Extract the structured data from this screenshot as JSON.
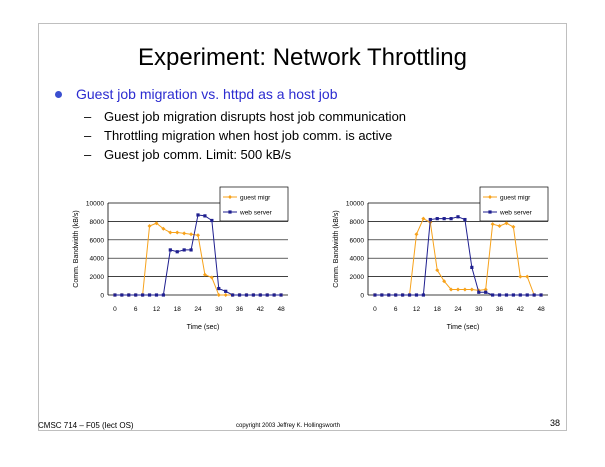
{
  "slide": {
    "title": "Experiment: Network Throttling",
    "main_bullet": "Guest job migration vs. httpd as a host job",
    "sub_bullets": [
      "Guest job migration disrupts host job communication",
      "Throttling migration when host job comm. is active",
      "Guest job comm. Limit: 500 kB/s"
    ],
    "footer_left": "CMSC 714 – F05 (lect OS)",
    "footer_center": "copyright 2003 Jeffrey K. Hollingsworth",
    "page_number": "38"
  },
  "colors": {
    "guest": "#f7a21b",
    "web": "#1f1f8f",
    "bullet": "#2b2bd0"
  },
  "chart_data": [
    {
      "type": "line",
      "xlabel": "Time (sec)",
      "ylabel": "Comm. Bandwidth (kB/s)",
      "ylim": [
        0,
        10000
      ],
      "xlim": [
        -2,
        50
      ],
      "yticks": [
        0,
        2000,
        4000,
        6000,
        8000,
        10000
      ],
      "xticks": [
        0,
        6,
        12,
        18,
        24,
        30,
        36,
        42,
        48
      ],
      "grid": "horizontal",
      "legend": "top-right",
      "series": [
        {
          "name": "guest migr",
          "color": "#f7a21b",
          "marker": "diamond",
          "x": [
            0,
            2,
            4,
            6,
            8,
            10,
            12,
            14,
            16,
            18,
            20,
            22,
            24,
            26,
            28,
            30,
            32,
            34,
            36,
            38,
            40,
            42,
            44,
            46,
            48
          ],
          "y": [
            0,
            0,
            0,
            0,
            0,
            7500,
            7800,
            7200,
            6800,
            6800,
            6700,
            6600,
            6500,
            2200,
            1900,
            0,
            0,
            0,
            0,
            0,
            0,
            0,
            0,
            0,
            0
          ]
        },
        {
          "name": "web server",
          "color": "#1f1f8f",
          "marker": "square",
          "x": [
            0,
            2,
            4,
            6,
            8,
            10,
            12,
            14,
            16,
            18,
            20,
            22,
            24,
            26,
            28,
            30,
            32,
            34,
            36,
            38,
            40,
            42,
            44,
            46,
            48
          ],
          "y": [
            0,
            0,
            0,
            0,
            0,
            0,
            0,
            0,
            4900,
            4700,
            4900,
            4900,
            8700,
            8600,
            8100,
            700,
            400,
            0,
            0,
            0,
            0,
            0,
            0,
            0,
            0
          ]
        }
      ]
    },
    {
      "type": "line",
      "xlabel": "Time (sec)",
      "ylabel": "Comm. Bandwidth (kB/s)",
      "ylim": [
        0,
        10000
      ],
      "xlim": [
        -2,
        50
      ],
      "yticks": [
        0,
        2000,
        4000,
        6000,
        8000,
        10000
      ],
      "xticks": [
        0,
        6,
        12,
        18,
        24,
        30,
        36,
        42,
        48
      ],
      "grid": "horizontal",
      "legend": "top-right",
      "series": [
        {
          "name": "guest migr",
          "color": "#f7a21b",
          "marker": "diamond",
          "x": [
            0,
            2,
            4,
            6,
            8,
            10,
            12,
            14,
            16,
            18,
            20,
            22,
            24,
            26,
            28,
            30,
            32,
            34,
            36,
            38,
            40,
            42,
            44,
            46,
            48
          ],
          "y": [
            0,
            0,
            0,
            0,
            0,
            0,
            6600,
            8300,
            7900,
            2700,
            1500,
            600,
            600,
            600,
            600,
            500,
            600,
            7700,
            7500,
            7800,
            7400,
            2000,
            2000,
            0,
            0
          ]
        },
        {
          "name": "web server",
          "color": "#1f1f8f",
          "marker": "square",
          "x": [
            0,
            2,
            4,
            6,
            8,
            10,
            12,
            14,
            16,
            18,
            20,
            22,
            24,
            26,
            28,
            30,
            32,
            34,
            36,
            38,
            40,
            42,
            44,
            46,
            48
          ],
          "y": [
            0,
            0,
            0,
            0,
            0,
            0,
            0,
            0,
            8200,
            8300,
            8300,
            8300,
            8500,
            8200,
            3000,
            300,
            300,
            0,
            0,
            0,
            0,
            0,
            0,
            0,
            0
          ]
        }
      ]
    }
  ]
}
